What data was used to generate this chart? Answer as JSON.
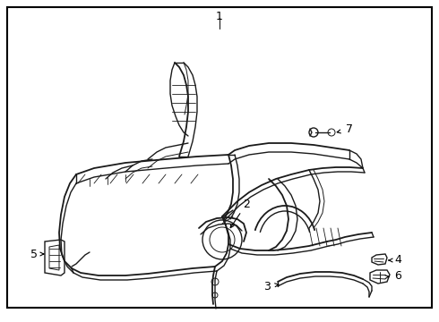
{
  "fig_width": 4.9,
  "fig_height": 3.6,
  "dpi": 100,
  "background_color": "#ffffff",
  "border_color": "#000000",
  "line_color": "#1a1a1a"
}
